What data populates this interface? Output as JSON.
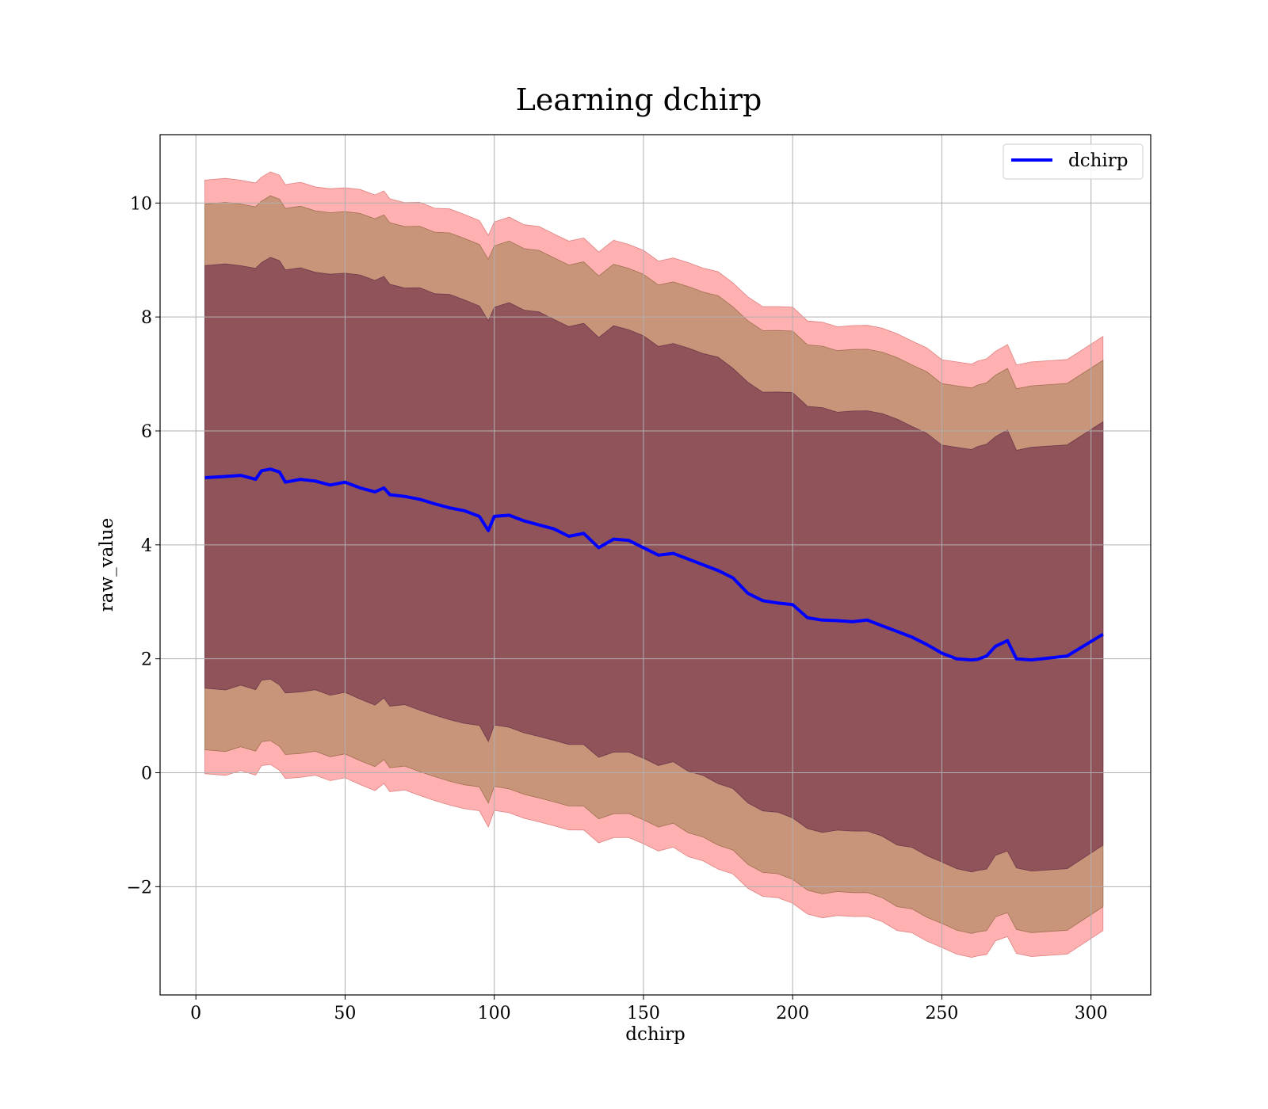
{
  "chart_data": {
    "type": "line",
    "title": "Learning dchirp",
    "xlabel": "dchirp",
    "ylabel": "raw_value",
    "xlim": [
      -12,
      320
    ],
    "ylim": [
      -3.9,
      11.2
    ],
    "xticks": [
      0,
      50,
      100,
      150,
      200,
      250,
      300
    ],
    "yticks": [
      -2,
      0,
      2,
      4,
      6,
      8,
      10
    ],
    "xtick_labels": [
      "0",
      "50",
      "100",
      "150",
      "200",
      "250",
      "300"
    ],
    "ytick_labels": [
      "−2",
      "0",
      "2",
      "4",
      "6",
      "8",
      "10"
    ],
    "grid": true,
    "legend_position": "top-right",
    "series": [
      {
        "name": "dchirp",
        "color": "#0000ff",
        "x": [
          3,
          10,
          15,
          20,
          22,
          25,
          28,
          30,
          35,
          40,
          45,
          50,
          55,
          60,
          63,
          65,
          70,
          75,
          80,
          85,
          90,
          95,
          98,
          100,
          105,
          110,
          115,
          120,
          125,
          130,
          135,
          140,
          145,
          150,
          155,
          160,
          165,
          170,
          175,
          180,
          185,
          190,
          195,
          200,
          205,
          210,
          215,
          220,
          225,
          230,
          235,
          240,
          245,
          250,
          255,
          260,
          262,
          265,
          268,
          272,
          275,
          280,
          292,
          304
        ],
        "y": [
          5.18,
          5.2,
          5.22,
          5.15,
          5.3,
          5.33,
          5.28,
          5.1,
          5.15,
          5.12,
          5.05,
          5.1,
          5.0,
          4.93,
          5.0,
          4.88,
          4.85,
          4.8,
          4.72,
          4.65,
          4.6,
          4.5,
          4.25,
          4.5,
          4.52,
          4.42,
          4.35,
          4.28,
          4.15,
          4.2,
          3.95,
          4.1,
          4.08,
          3.95,
          3.82,
          3.85,
          3.75,
          3.65,
          3.55,
          3.42,
          3.15,
          3.02,
          2.98,
          2.95,
          2.72,
          2.68,
          2.67,
          2.65,
          2.68,
          2.58,
          2.48,
          2.38,
          2.25,
          2.1,
          2.0,
          1.98,
          1.99,
          2.05,
          2.22,
          2.32,
          2.0,
          1.98,
          2.05,
          2.43
        ],
        "band_inner": {
          "offset": 3.7,
          "color": "#7b3a4e"
        },
        "band_middle": {
          "offset": 4.78,
          "color": "#c8957a"
        },
        "band_outer": {
          "offset": 5.2,
          "color": "#ffb0b0"
        }
      }
    ]
  }
}
